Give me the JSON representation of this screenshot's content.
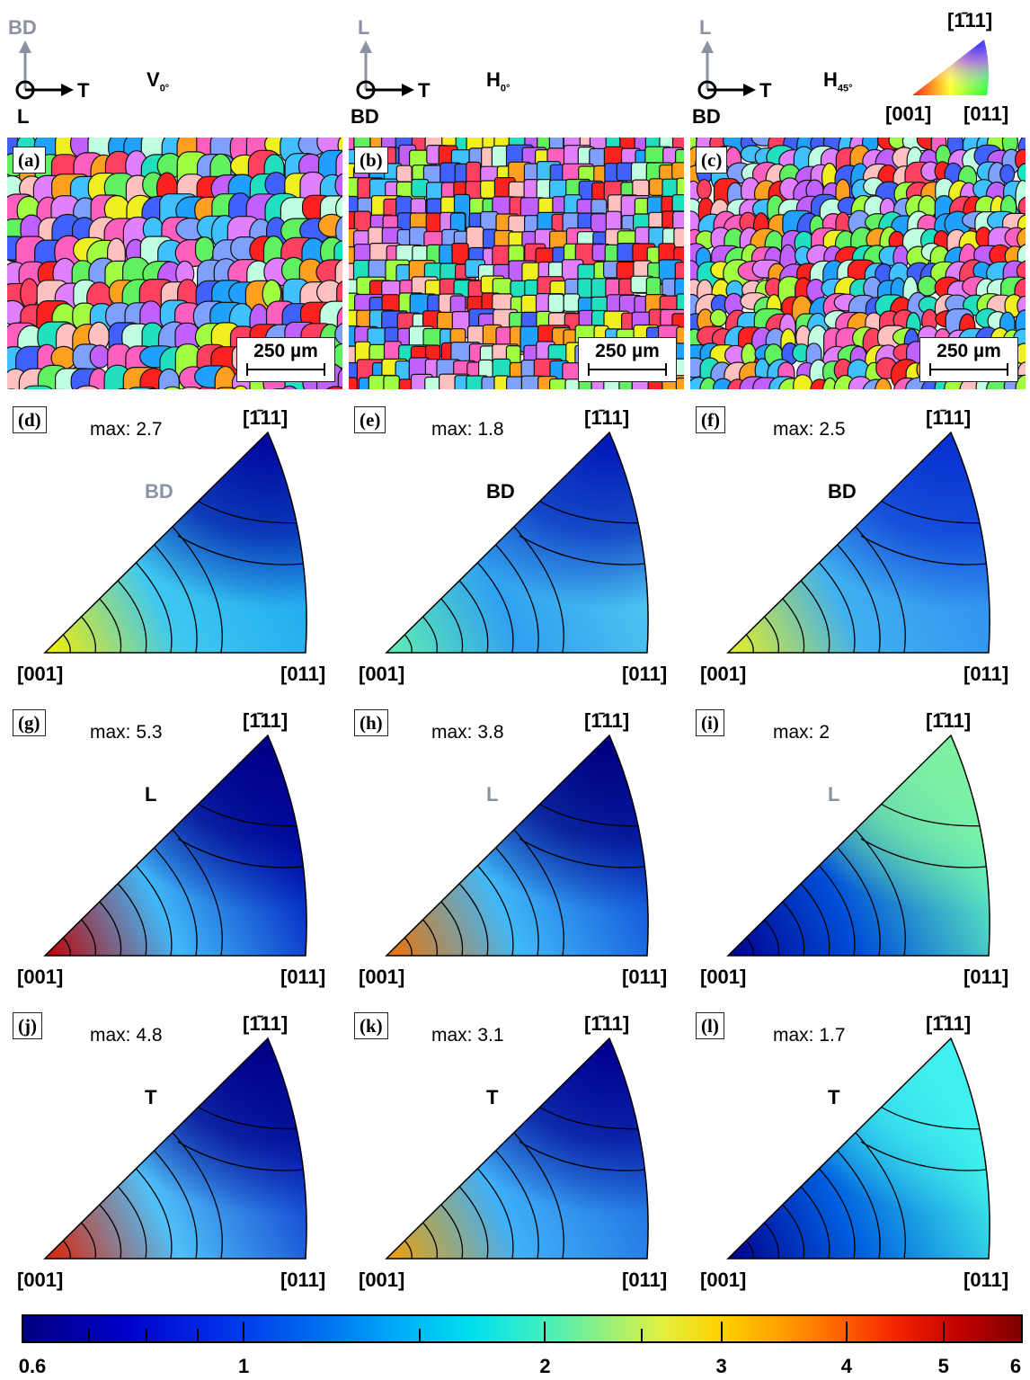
{
  "header": {
    "v": {
      "up": "BD",
      "right": "T",
      "center": "L",
      "sample_main": "V",
      "sample_sub": "0°"
    },
    "h0": {
      "up": "L",
      "right": "T",
      "center": "BD",
      "sample_main": "H",
      "sample_sub": "0°"
    },
    "h45": {
      "up": "L",
      "right": "T",
      "center": "BD",
      "sample_main": "H",
      "sample_sub": "45°"
    },
    "key": {
      "top": "[1̄11]",
      "left": "[001]",
      "right": "[011]"
    }
  },
  "ebsd_panels": [
    {
      "label": "(a)",
      "scale": "250 µm"
    },
    {
      "label": "(b)",
      "scale": "250 µm"
    },
    {
      "label": "(c)",
      "scale": "250 µm"
    }
  ],
  "ipf_panels": [
    {
      "label": "(d)",
      "max": "max: 2.7",
      "dir": "BD",
      "dir_grey": true
    },
    {
      "label": "(e)",
      "max": "max: 1.8",
      "dir": "BD",
      "dir_grey": false
    },
    {
      "label": "(f)",
      "max": "max: 2.5",
      "dir": "BD",
      "dir_grey": false
    },
    {
      "label": "(g)",
      "max": "max: 5.3",
      "dir": "L",
      "dir_grey": false
    },
    {
      "label": "(h)",
      "max": "max: 3.8",
      "dir": "L",
      "dir_grey": true
    },
    {
      "label": "(i)",
      "max": "max: 2",
      "dir": "L",
      "dir_grey": true
    },
    {
      "label": "(j)",
      "max": "max: 4.8",
      "dir": "T",
      "dir_grey": false
    },
    {
      "label": "(k)",
      "max": "max: 3.1",
      "dir": "T",
      "dir_grey": false
    },
    {
      "label": "(l)",
      "max": "max: 1.7",
      "dir": "T",
      "dir_grey": false
    }
  ],
  "corners": {
    "top": "[1̄11]",
    "left": "[001]",
    "right": "[011]"
  },
  "colorbar": {
    "min": 0.6,
    "max": 6,
    "ticks": [
      "0.6",
      "1",
      "2",
      "3",
      "4",
      "5",
      "6"
    ]
  }
}
